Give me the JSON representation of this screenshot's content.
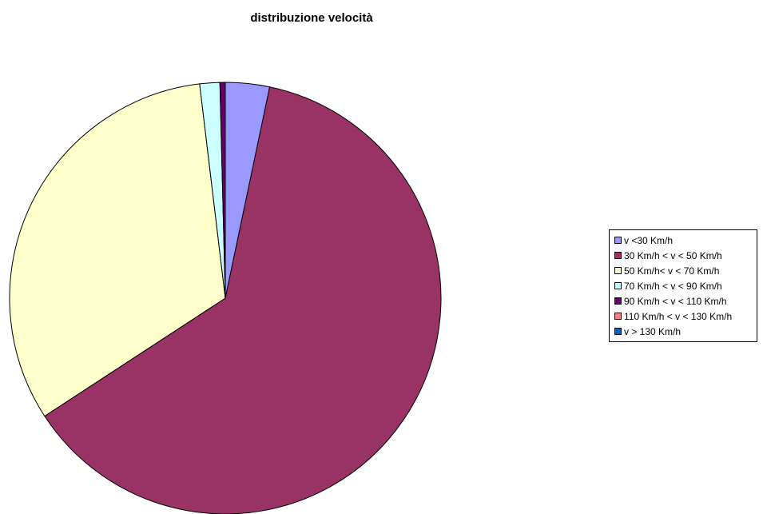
{
  "chart_data": {
    "type": "pie",
    "title": "distribuzione velocità",
    "categories": [
      "v <30 Km/h",
      "30 Km/h < v < 50 Km/h",
      "50 Km/h< v < 70 Km/h",
      "70 Km/h < v < 90 Km/h",
      "90 Km/h < v < 110 Km/h",
      "110 Km/h < v < 130 Km/h",
      "v > 130 Km/h"
    ],
    "values": [
      3.3,
      62.5,
      32.3,
      1.5,
      0.4,
      0.0,
      0.0
    ],
    "colors": [
      "#9999ff",
      "#993366",
      "#ffffcc",
      "#ccffff",
      "#660066",
      "#ff8080",
      "#0066cc"
    ],
    "start_angle_deg": 0,
    "direction": "clockwise",
    "legend_position": "right"
  }
}
